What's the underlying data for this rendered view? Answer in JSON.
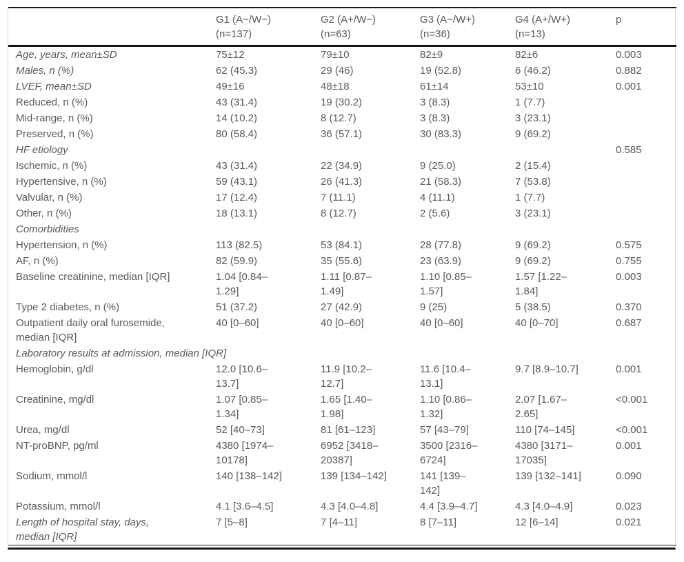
{
  "table": {
    "header": {
      "cells": [
        "",
        "G1 (A−/W−)\n(n=137)",
        "G2 (A+/W−)\n(n=63)",
        "G3 (A−/W+)\n(n=36)",
        "G4 (A+/W+)\n(n=13)",
        "p"
      ]
    },
    "rows": [
      {
        "label": "Age, years, mean±SD",
        "italic": true,
        "values": [
          "75±12",
          "79±10",
          "82±9",
          "82±6"
        ],
        "p": "0.003"
      },
      {
        "label": "Males, n (%)",
        "italic": true,
        "values": [
          "62 (45.3)",
          "29 (46)",
          "19 (52.8)",
          "6 (46.2)"
        ],
        "p": "0.882"
      },
      {
        "label": "LVEF, mean±SD",
        "italic": true,
        "values": [
          "49±16",
          "48±18",
          "61±14",
          "53±10"
        ],
        "p": "0.001"
      },
      {
        "label": "Reduced, n (%)",
        "italic": false,
        "values": [
          "43 (31.4)",
          "19 (30.2)",
          "3 (8.3)",
          "1 (7.7)"
        ],
        "p": ""
      },
      {
        "label": "Mid-range, n (%)",
        "italic": false,
        "values": [
          "14 (10.2)",
          "8 (12.7)",
          "3 (8.3)",
          "3 (23.1)"
        ],
        "p": ""
      },
      {
        "label": "Preserved, n (%)",
        "italic": false,
        "values": [
          "80 (58.4)",
          "36 (57.1)",
          "30 (83.3)",
          "9 (69.2)"
        ],
        "p": ""
      },
      {
        "label": "HF etiology",
        "italic": true,
        "values": [
          "",
          "",
          "",
          ""
        ],
        "p": "0.585"
      },
      {
        "label": "Ischemic, n (%)",
        "italic": false,
        "values": [
          "43 (31.4)",
          "22 (34.9)",
          "9 (25.0)",
          "2 (15.4)"
        ],
        "p": ""
      },
      {
        "label": "Hypertensive, n (%)",
        "italic": false,
        "values": [
          "59 (43.1)",
          "26 (41.3)",
          "21 (58.3)",
          "7 (53.8)"
        ],
        "p": ""
      },
      {
        "label": "Valvular, n (%)",
        "italic": false,
        "values": [
          "17 (12.4)",
          "7 (11.1)",
          "4 (11.1)",
          "1 (7.7)"
        ],
        "p": ""
      },
      {
        "label": "Other, n (%)",
        "italic": false,
        "values": [
          "18 (13.1)",
          "8 (12.7)",
          "2 (5.6)",
          "3 (23.1)"
        ],
        "p": ""
      },
      {
        "label": "Comorbidities",
        "italic": true,
        "values": [
          "",
          "",
          "",
          ""
        ],
        "p": ""
      },
      {
        "label": "Hypertension, n (%)",
        "italic": false,
        "values": [
          "113 (82.5)",
          "53 (84.1)",
          "28 (77.8)",
          "9 (69.2)"
        ],
        "p": "0.575"
      },
      {
        "label": "AF, n (%)",
        "italic": false,
        "values": [
          "82 (59.9)",
          "35 (55.6)",
          "23 (63.9)",
          "9 (69.2)"
        ],
        "p": "0.755"
      },
      {
        "label": "Baseline creatinine, median [IQR]",
        "italic": false,
        "values": [
          "1.04 [0.84–\n1.29]",
          "1.11 [0.87–\n1.49]",
          "1.10 [0.85–\n1.57]",
          "1.57 [1.22–\n1.84]"
        ],
        "p": "0.003"
      },
      {
        "label": "Type 2 diabetes, n (%)",
        "italic": false,
        "values": [
          "51 (37.2)",
          "27 (42.9)",
          "9 (25)",
          "5 (38.5)"
        ],
        "p": "0.370"
      },
      {
        "label": "Outpatient daily oral furosemide,\nmedian [IQR]",
        "italic": false,
        "values": [
          "40 [0–60]",
          "40 [0–60]",
          "40 [0–60]",
          "40 [0–70]"
        ],
        "p": "0.687"
      },
      {
        "label": "Laboratory results at admission, median [IQR]",
        "italic": true,
        "span": true,
        "values": [
          "",
          "",
          "",
          ""
        ],
        "p": ""
      },
      {
        "label": "Hemoglobin, g/dl",
        "italic": false,
        "values": [
          "12.0 [10.6–\n13.7]",
          "11.9 [10.2–\n12.7]",
          "11.6 [10.4–\n13.1]",
          "9.7 [8.9–10.7]"
        ],
        "p": "0.001"
      },
      {
        "label": "Creatinine, mg/dl",
        "italic": false,
        "values": [
          "1.07 [0.85–\n1.34]",
          "1.65 [1.40–\n1.98]",
          "1.10 [0.86–\n1.32]",
          "2.07 [1.67–\n2.65]"
        ],
        "p": "<0.001"
      },
      {
        "label": "Urea, mg/dl",
        "italic": false,
        "values": [
          "52 [40–73]",
          "81 [61–123]",
          "57 [43–79]",
          "110 [74–145]"
        ],
        "p": "<0.001"
      },
      {
        "label": "NT-proBNP, pg/ml",
        "italic": false,
        "values": [
          "4380 [1974–\n10178]",
          "6952 [3418–\n20387]",
          "3500 [2316–\n6724]",
          "4380 [3171–\n17035]"
        ],
        "p": "0.001"
      },
      {
        "label": "Sodium, mmol/l",
        "italic": false,
        "values": [
          "140 [138–142]",
          "139 [134–142]",
          "141 [139–\n142]",
          "139 [132–141]"
        ],
        "p": "0.090"
      },
      {
        "label": "Potassium, mmol/l",
        "italic": false,
        "values": [
          "4.1 [3.6–4.5]",
          "4.3 [4.0–4.8]",
          "4.4 [3.9–4.7]",
          "4.3 [4.0–4.9]"
        ],
        "p": "0.023"
      },
      {
        "label": "Length of hospital stay, days,\nmedian [IQR]",
        "italic": true,
        "values": [
          "7 [5–8]",
          "7 [4–11]",
          "8 [7–11]",
          "12 [6–14]"
        ],
        "p": "0.021"
      }
    ]
  }
}
